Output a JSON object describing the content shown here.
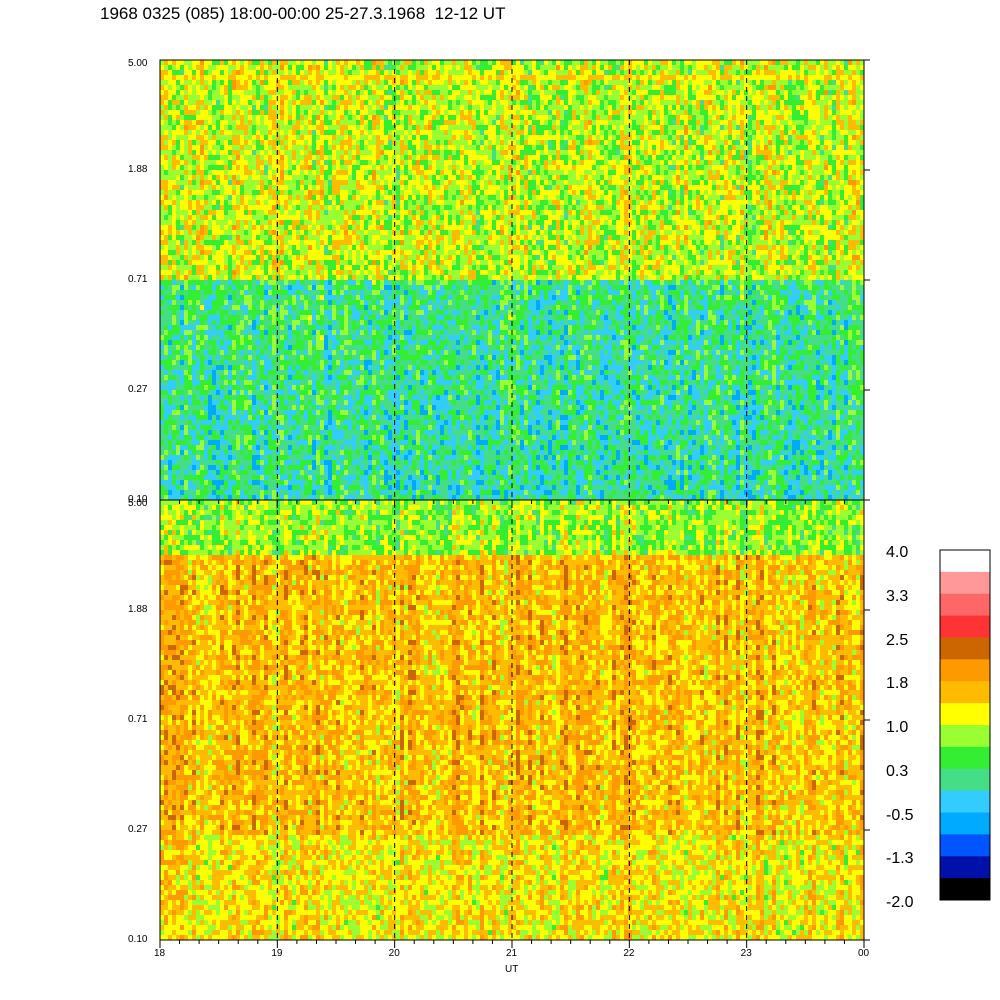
{
  "title": "1968 0325 (085) 18:00-00:00 25-27.3.1968  12-12 UT",
  "chart_data": {
    "type": "heatmap",
    "panels": [
      {
        "name": "",
        "ylim": [
          0.1,
          5.0
        ],
        "yscale": "log",
        "yticks": [
          "5.00",
          "1.88",
          "0.71",
          "0.27",
          "0.10"
        ],
        "base_level": 0.6
      },
      {
        "name": "",
        "ylim": [
          0.1,
          5.0
        ],
        "yscale": "log",
        "yticks": [
          "5.00",
          "1.88",
          "0.71",
          "0.27",
          "0.10"
        ],
        "base_level": 1.5
      }
    ],
    "x_ticks": [
      "18",
      "19",
      "20",
      "21",
      "22",
      "23",
      "00"
    ],
    "xlabel": "UT",
    "xlim": [
      18,
      24
    ],
    "dashed_hours": [
      19,
      20,
      21,
      22,
      23
    ],
    "colorbar": {
      "labels": [
        "4.0",
        "3.3",
        "2.5",
        "1.8",
        "1.0",
        "0.3",
        "-0.5",
        "-1.3",
        "-2.0"
      ],
      "colors": [
        "#ffffff",
        "#ff9999",
        "#ff6666",
        "#ff3333",
        "#cc6600",
        "#ff9900",
        "#ffbb00",
        "#ffff00",
        "#99ff33",
        "#33ee33",
        "#44dd88",
        "#33ccff",
        "#00aaff",
        "#0055ff",
        "#0011aa",
        "#000000"
      ]
    }
  }
}
